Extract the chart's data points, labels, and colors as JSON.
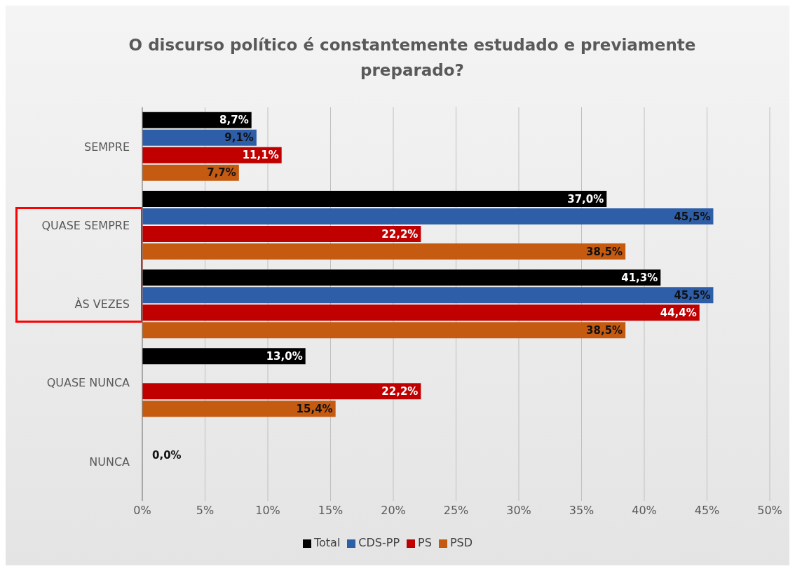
{
  "chart_data": {
    "type": "bar",
    "orientation": "horizontal",
    "title": "O discurso político é constantemente estudado e previamente preparado?",
    "categories": [
      "SEMPRE",
      "QUASE SEMPRE",
      "ÀS VEZES",
      "QUASE NUNCA",
      "NUNCA"
    ],
    "series": [
      {
        "name": "Total",
        "color": "#000000",
        "values": [
          8.7,
          37.0,
          41.3,
          13.0,
          0.0
        ],
        "value_labels": [
          "8,7%",
          "37,0%",
          "41,3%",
          "13,0%",
          "0,0%"
        ]
      },
      {
        "name": "CDS-PP",
        "color": "#2e5ea8",
        "values": [
          9.1,
          45.5,
          45.5,
          null,
          null
        ],
        "value_labels": [
          "9,1%",
          "45,5%",
          "45,5%",
          null,
          null
        ]
      },
      {
        "name": "PS",
        "color": "#c00000",
        "values": [
          11.1,
          22.2,
          44.4,
          22.2,
          null
        ],
        "value_labels": [
          "11,1%",
          "22,2%",
          "44,4%",
          "22,2%",
          null
        ]
      },
      {
        "name": "PSD",
        "color": "#c55a11",
        "values": [
          7.7,
          38.5,
          38.5,
          15.4,
          null
        ],
        "value_labels": [
          "7,7%",
          "38,5%",
          "38,5%",
          "15,4%",
          null
        ]
      }
    ],
    "xlim": [
      0,
      50
    ],
    "xticks": [
      {
        "value": 0,
        "label": "0%"
      },
      {
        "value": 5,
        "label": "5%"
      },
      {
        "value": 10,
        "label": "10%"
      },
      {
        "value": 15,
        "label": "15%"
      },
      {
        "value": 20,
        "label": "20%"
      },
      {
        "value": 25,
        "label": "25%"
      },
      {
        "value": 30,
        "label": "30%"
      },
      {
        "value": 35,
        "label": "35%"
      },
      {
        "value": 40,
        "label": "40%"
      },
      {
        "value": 45,
        "label": "45%"
      },
      {
        "value": 50,
        "label": "50%"
      }
    ],
    "grid": "x",
    "legend": "bottom"
  }
}
